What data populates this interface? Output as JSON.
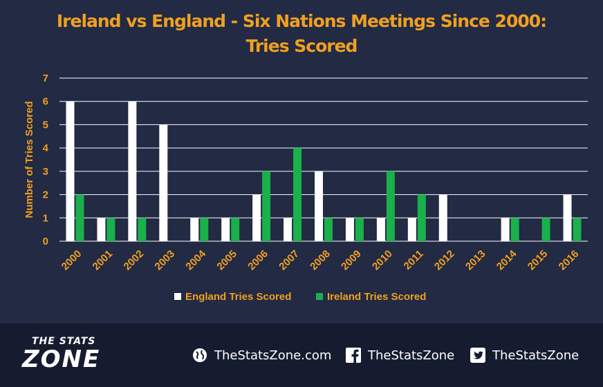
{
  "chart_data": {
    "type": "bar",
    "title": "Ireland vs England - Six Nations Meetings Since 2000:",
    "subtitle": "Tries Scored",
    "ylabel": "Number of Tries Scored",
    "xlabel": "",
    "ylim": [
      0,
      7
    ],
    "yticks": [
      0,
      1,
      2,
      3,
      4,
      5,
      6,
      7
    ],
    "categories": [
      "2000",
      "2001",
      "2002",
      "2003",
      "2004",
      "2005",
      "2006",
      "2007",
      "2008",
      "2009",
      "2010",
      "2011",
      "2012",
      "2013",
      "2014",
      "2015",
      "2016"
    ],
    "series": [
      {
        "name": "England Tries Scored",
        "color": "#ffffff",
        "values": [
          6,
          1,
          6,
          5,
          1,
          1,
          2,
          1,
          3,
          1,
          1,
          1,
          2,
          0,
          1,
          0,
          2
        ]
      },
      {
        "name": "Ireland Tries Scored",
        "color": "#1ab04a",
        "values": [
          2,
          1,
          1,
          0,
          1,
          1,
          3,
          4,
          1,
          1,
          3,
          2,
          0,
          0,
          1,
          1,
          1
        ]
      }
    ],
    "grid": true,
    "legend_position": "bottom"
  },
  "colors": {
    "background": "#222a44",
    "footer": "#161c30",
    "accent": "#f0a020",
    "grid": "#ffffff"
  },
  "branding": {
    "logo_top": "THE STATS",
    "logo_bottom": "ZONE",
    "website": "TheStatsZone.com",
    "facebook": "TheStatsZone",
    "twitter": "TheStatsZone",
    "website_icon": "globe-icon",
    "facebook_icon": "facebook-icon",
    "twitter_icon": "twitter-icon"
  }
}
